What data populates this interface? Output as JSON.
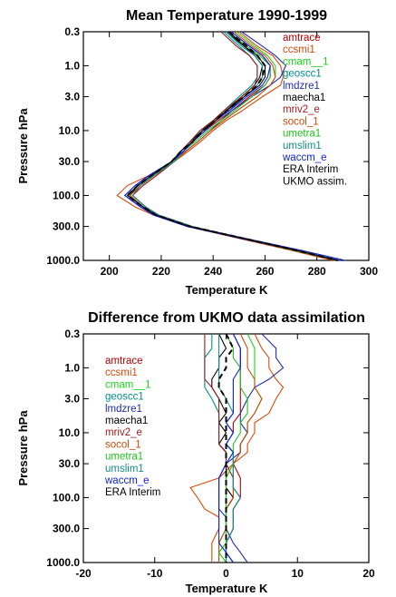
{
  "chart_data": [
    {
      "type": "line",
      "title": "Mean Temperature 1990-1999",
      "xlabel": "Temperature K",
      "ylabel": "Pressure hPa",
      "xlim": [
        190,
        300
      ],
      "ylim": [
        1000,
        0.3
      ],
      "yscale": "log",
      "x_ticks": [
        "200",
        "220",
        "240",
        "260",
        "280",
        "300"
      ],
      "y_ticks": [
        "0.3",
        "1.0",
        "3.0",
        "10.0",
        "30.0",
        "100.0",
        "300.0",
        "1000.0"
      ],
      "legend_position": "right",
      "pressure": [
        0.3,
        0.5,
        0.7,
        1.0,
        1.5,
        2,
        3,
        5,
        7,
        10,
        15,
        20,
        30,
        50,
        70,
        100,
        150,
        200,
        300,
        500,
        700,
        1000
      ],
      "series": [
        {
          "name": "amtrace",
          "color": "#b40000",
          "dash": "",
          "values": [
            247,
            254,
            259,
            262,
            262,
            260,
            254,
            247,
            242,
            237,
            232,
            229,
            225,
            218,
            213,
            209,
            214,
            219,
            232,
            256,
            272,
            288
          ]
        },
        {
          "name": "ccsmi1",
          "color": "#d84a0a",
          "dash": "",
          "values": [
            250,
            257,
            263,
            266,
            267,
            266,
            259,
            251,
            245,
            240,
            235,
            231,
            225,
            215,
            207,
            203,
            210,
            217,
            230,
            254,
            270,
            286
          ]
        },
        {
          "name": "cmam__1",
          "color": "#1ed21e",
          "dash": "",
          "values": [
            249,
            256,
            261,
            264,
            264,
            262,
            257,
            249,
            244,
            239,
            234,
            230,
            225,
            217,
            212,
            208,
            213,
            218,
            231,
            255,
            271,
            287
          ]
        },
        {
          "name": "geoscc1",
          "color": "#008c8c",
          "dash": "",
          "values": [
            244,
            250,
            254,
            257,
            257,
            255,
            250,
            244,
            240,
            235,
            231,
            228,
            224,
            216,
            211,
            207,
            213,
            218,
            231,
            256,
            272,
            289
          ]
        },
        {
          "name": "lmdzre1",
          "color": "#1f2db4",
          "dash": "",
          "values": [
            251,
            259,
            264,
            268,
            266,
            262,
            255,
            247,
            243,
            239,
            234,
            230,
            224,
            215,
            210,
            206,
            212,
            218,
            231,
            257,
            274,
            291
          ]
        },
        {
          "name": "maecha1",
          "color": "#000000",
          "dash": "",
          "values": [
            245,
            252,
            256,
            259,
            258,
            256,
            251,
            245,
            240,
            236,
            231,
            228,
            224,
            216,
            211,
            208,
            213,
            218,
            231,
            256,
            272,
            288
          ]
        },
        {
          "name": "mriv2_e",
          "color": "#9c1a1a",
          "dash": "",
          "values": [
            243,
            249,
            254,
            257,
            257,
            256,
            251,
            244,
            240,
            235,
            231,
            228,
            224,
            217,
            212,
            209,
            214,
            219,
            232,
            256,
            272,
            288
          ]
        },
        {
          "name": "socol_1",
          "color": "#c84b0a",
          "dash": "",
          "values": [
            248,
            255,
            260,
            263,
            264,
            262,
            257,
            249,
            244,
            239,
            234,
            230,
            225,
            217,
            212,
            208,
            213,
            218,
            231,
            255,
            271,
            287
          ]
        },
        {
          "name": "umetra1",
          "color": "#22c01e",
          "dash": "",
          "values": [
            246,
            253,
            258,
            262,
            262,
            260,
            255,
            248,
            243,
            238,
            233,
            229,
            225,
            216,
            211,
            207,
            213,
            218,
            231,
            256,
            271,
            288
          ]
        },
        {
          "name": "umslim1",
          "color": "#138c8c",
          "dash": "",
          "values": [
            245,
            251,
            256,
            259,
            259,
            257,
            252,
            246,
            241,
            237,
            232,
            229,
            225,
            217,
            212,
            209,
            214,
            219,
            232,
            256,
            272,
            288
          ]
        },
        {
          "name": "waccm_e",
          "color": "#0a1ee0",
          "dash": "",
          "values": [
            247,
            254,
            259,
            262,
            261,
            259,
            253,
            246,
            241,
            237,
            232,
            229,
            224,
            215,
            210,
            206,
            212,
            217,
            230,
            255,
            272,
            289
          ]
        },
        {
          "name": "ERA Interim",
          "color": "#000000",
          "dash": "6,4",
          "values": [
            246,
            253,
            257,
            260,
            259,
            257,
            252,
            245,
            241,
            236,
            232,
            228,
            224,
            216,
            211,
            207,
            213,
            218,
            231,
            256,
            272,
            288
          ]
        },
        {
          "name": "UKMO assim.",
          "color": "#000000",
          "dash": "",
          "values": [
            246,
            252,
            257,
            260,
            260,
            258,
            252,
            245,
            241,
            236,
            232,
            228,
            224,
            216,
            211,
            207,
            213,
            218,
            231,
            256,
            272,
            288
          ]
        }
      ]
    },
    {
      "type": "line",
      "title": "Difference from UKMO data assimilation",
      "xlabel": "Temperature K",
      "ylabel": "Pressure hPa",
      "xlim": [
        -20,
        20
      ],
      "ylim": [
        1000,
        0.3
      ],
      "yscale": "log",
      "x_ticks": [
        "-20",
        "-10",
        "0",
        "10",
        "20"
      ],
      "y_ticks": [
        "0.3",
        "1.0",
        "3.0",
        "10.0",
        "30.0",
        "100.0",
        "300.0",
        "1000.0"
      ],
      "legend_position": "left",
      "pressure": [
        0.3,
        0.5,
        0.7,
        1.0,
        1.5,
        2,
        3,
        5,
        7,
        10,
        15,
        20,
        30,
        50,
        70,
        100,
        150,
        200,
        300,
        500,
        700,
        1000
      ],
      "series": [
        {
          "name": "amtrace",
          "color": "#b40000",
          "dash": "",
          "values": [
            1,
            2,
            2,
            2,
            2,
            2,
            2,
            2,
            1,
            1,
            0,
            1,
            1,
            2,
            2,
            2,
            1,
            1,
            1,
            0,
            0,
            0
          ]
        },
        {
          "name": "ccsmi1",
          "color": "#d84a0a",
          "dash": "",
          "values": [
            4,
            5,
            6,
            6,
            7,
            8,
            7,
            6,
            4,
            4,
            3,
            3,
            1,
            -1,
            -5,
            -4,
            -3,
            -1,
            -1,
            -2,
            -2,
            -2
          ]
        },
        {
          "name": "cmam__1",
          "color": "#1ed21e",
          "dash": "",
          "values": [
            3,
            4,
            4,
            4,
            4,
            4,
            5,
            4,
            3,
            3,
            2,
            2,
            1,
            1,
            1,
            1,
            0,
            0,
            0,
            -1,
            -1,
            -1
          ]
        },
        {
          "name": "geoscc1",
          "color": "#008c8c",
          "dash": "",
          "values": [
            -2,
            -2,
            -3,
            -3,
            -3,
            -3,
            -2,
            -1,
            -1,
            -1,
            -1,
            0,
            0,
            0,
            0,
            0,
            0,
            0,
            0,
            0,
            0,
            1
          ]
        },
        {
          "name": "lmdzre1",
          "color": "#1f2db4",
          "dash": "",
          "values": [
            5,
            7,
            7,
            8,
            6,
            4,
            3,
            2,
            2,
            3,
            2,
            2,
            0,
            -1,
            -1,
            -1,
            -1,
            0,
            0,
            1,
            2,
            3
          ]
        },
        {
          "name": "maecha1",
          "color": "#000000",
          "dash": "",
          "values": [
            -1,
            0,
            -1,
            -1,
            -2,
            -2,
            -1,
            0,
            -1,
            0,
            -1,
            0,
            0,
            0,
            0,
            1,
            0,
            0,
            0,
            0,
            0,
            0
          ]
        },
        {
          "name": "mriv2_e",
          "color": "#9c1a1a",
          "dash": "",
          "values": [
            -3,
            -3,
            -3,
            -3,
            -3,
            -2,
            -1,
            -1,
            -1,
            -1,
            -1,
            0,
            0,
            1,
            1,
            2,
            1,
            1,
            1,
            0,
            0,
            0
          ]
        },
        {
          "name": "socol_1",
          "color": "#c84b0a",
          "dash": "",
          "values": [
            2,
            3,
            3,
            3,
            4,
            4,
            5,
            4,
            3,
            3,
            2,
            2,
            1,
            1,
            1,
            1,
            0,
            0,
            0,
            -1,
            -1,
            -1
          ]
        },
        {
          "name": "umetra1",
          "color": "#22c01e",
          "dash": "",
          "values": [
            0,
            1,
            1,
            2,
            2,
            2,
            3,
            3,
            2,
            2,
            1,
            1,
            1,
            0,
            0,
            0,
            0,
            0,
            0,
            0,
            -1,
            0
          ]
        },
        {
          "name": "umslim1",
          "color": "#138c8c",
          "dash": "",
          "values": [
            -1,
            -1,
            -1,
            -1,
            -1,
            -1,
            0,
            1,
            0,
            1,
            0,
            1,
            1,
            1,
            1,
            2,
            1,
            1,
            1,
            0,
            0,
            0
          ]
        },
        {
          "name": "waccm_e",
          "color": "#0a1ee0",
          "dash": "",
          "values": [
            1,
            2,
            2,
            2,
            1,
            1,
            1,
            1,
            0,
            1,
            0,
            1,
            0,
            -1,
            -1,
            -1,
            -1,
            -1,
            -1,
            -1,
            0,
            1
          ]
        },
        {
          "name": "ERA Interim",
          "color": "#000000",
          "dash": "6,4",
          "values": [
            0,
            1,
            0,
            0,
            -1,
            -1,
            0,
            0,
            0,
            0,
            0,
            0,
            0,
            0,
            0,
            0,
            0,
            0,
            0,
            0,
            0,
            0
          ]
        }
      ]
    }
  ]
}
